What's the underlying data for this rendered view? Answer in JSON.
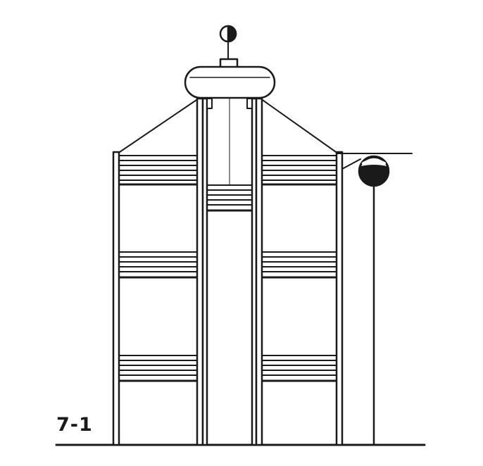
{
  "figure": {
    "label": "7-1",
    "line_color": "#1a1a1a",
    "fill_color": "#ffffff"
  }
}
